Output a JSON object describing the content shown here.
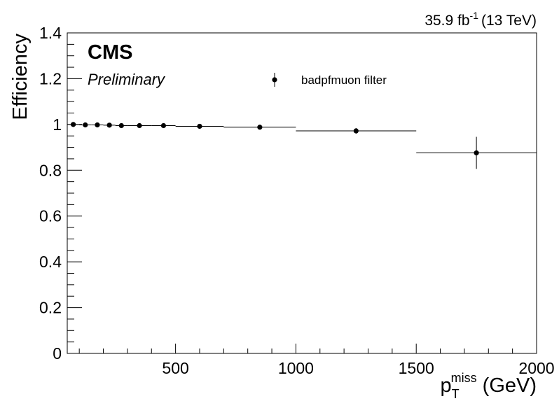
{
  "chart_data": {
    "type": "scatter",
    "ylabel": "Efficiency",
    "xlabel": "(GeV)",
    "xlabel_symbol": "p",
    "xlabel_sub": "T",
    "xlabel_sup": "miss",
    "lumi_text": {
      "value": "35.9 fb",
      "exp": "-1",
      "energy": "(13 TeV)"
    },
    "experiment": "CMS",
    "status": "Preliminary",
    "xlim": [
      50,
      2000
    ],
    "ylim": [
      0,
      1.4
    ],
    "x_ticks": [
      {
        "value": 500,
        "label": "500"
      },
      {
        "value": 1000,
        "label": "1000"
      },
      {
        "value": 1500,
        "label": "1500"
      },
      {
        "value": 2000,
        "label": "2000"
      }
    ],
    "y_ticks": [
      {
        "value": 0,
        "label": "0"
      },
      {
        "value": 0.2,
        "label": "0.2"
      },
      {
        "value": 0.4,
        "label": "0.4"
      },
      {
        "value": 0.6,
        "label": "0.6"
      },
      {
        "value": 0.8,
        "label": "0.8"
      },
      {
        "value": 1.0,
        "label": "1"
      },
      {
        "value": 1.2,
        "label": "1.2"
      },
      {
        "value": 1.4,
        "label": "1.4"
      }
    ],
    "legend": {
      "position": "top-center"
    },
    "series": [
      {
        "name": "badpfmuon filter",
        "color": "#000000",
        "points": [
          {
            "x": 75,
            "xlo": 50,
            "xhi": 100,
            "y": 1.0,
            "err": 0.003
          },
          {
            "x": 125,
            "xlo": 100,
            "xhi": 150,
            "y": 0.998,
            "err": 0.003
          },
          {
            "x": 175,
            "xlo": 150,
            "xhi": 200,
            "y": 0.998,
            "err": 0.003
          },
          {
            "x": 225,
            "xlo": 200,
            "xhi": 250,
            "y": 0.997,
            "err": 0.003
          },
          {
            "x": 275,
            "xlo": 250,
            "xhi": 300,
            "y": 0.995,
            "err": 0.003
          },
          {
            "x": 350,
            "xlo": 300,
            "xhi": 400,
            "y": 0.995,
            "err": 0.003
          },
          {
            "x": 450,
            "xlo": 400,
            "xhi": 500,
            "y": 0.995,
            "err": 0.004
          },
          {
            "x": 600,
            "xlo": 500,
            "xhi": 700,
            "y": 0.992,
            "err": 0.004
          },
          {
            "x": 850,
            "xlo": 700,
            "xhi": 1000,
            "y": 0.988,
            "err": 0.005
          },
          {
            "x": 1250,
            "xlo": 1000,
            "xhi": 1500,
            "y": 0.972,
            "err": 0.012
          },
          {
            "x": 1750,
            "xlo": 1500,
            "xhi": 2000,
            "y": 0.876,
            "err": 0.07
          }
        ]
      }
    ]
  }
}
